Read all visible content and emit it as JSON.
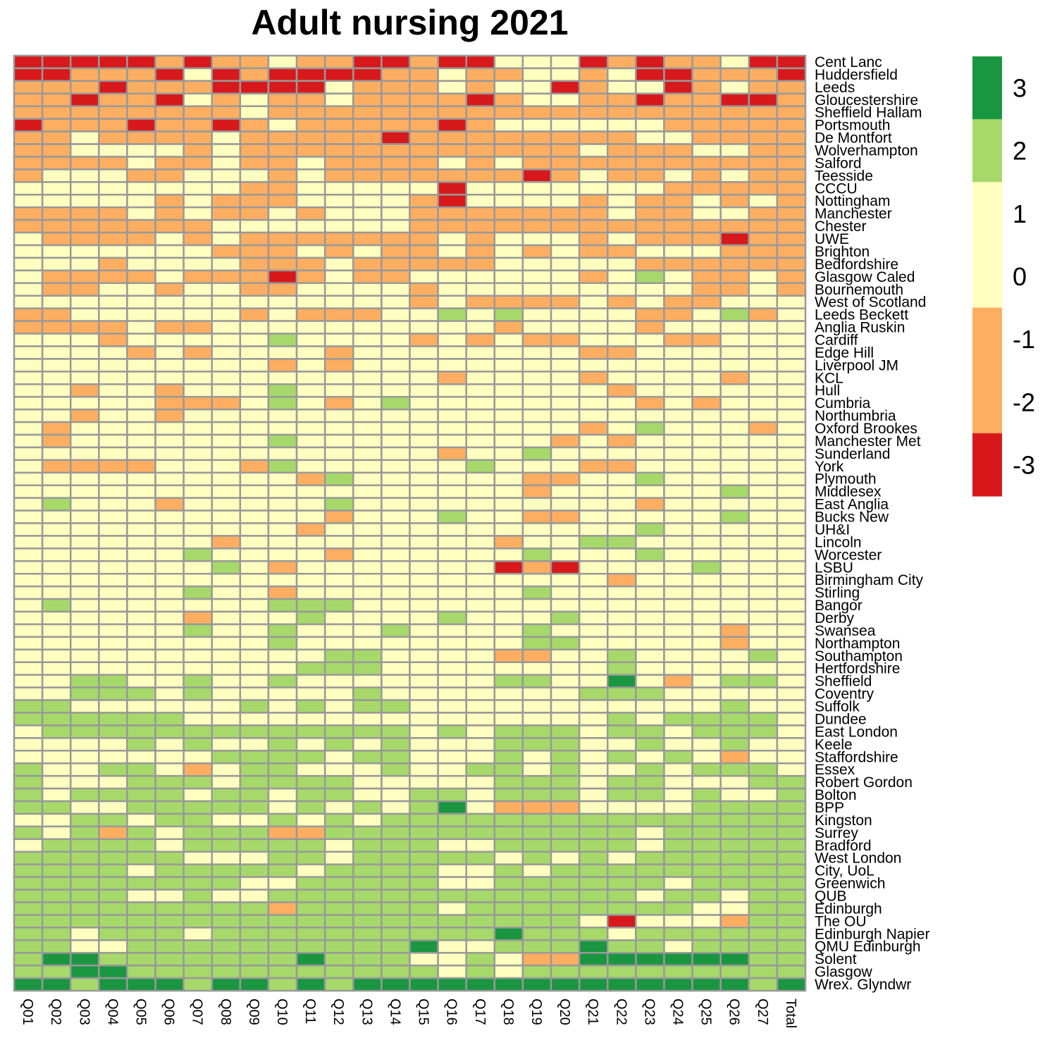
{
  "chart_data": {
    "type": "heatmap",
    "title": "Adult nursing 2021",
    "columns": [
      "Q01",
      "Q02",
      "Q03",
      "Q04",
      "Q05",
      "Q06",
      "Q07",
      "Q08",
      "Q09",
      "Q10",
      "Q11",
      "Q12",
      "Q13",
      "Q14",
      "Q15",
      "Q16",
      "Q17",
      "Q18",
      "Q19",
      "Q20",
      "Q21",
      "Q22",
      "Q23",
      "Q24",
      "Q25",
      "Q26",
      "Q27",
      "Total"
    ],
    "rows": [
      "Cent Lanc",
      "Huddersfield",
      "Leeds",
      "Gloucestershire",
      "Sheffield Hallam",
      "Portsmouth",
      "De Montfort",
      "Wolverhampton",
      "Salford",
      "Teesside",
      "CCCU",
      "Nottingham",
      "Manchester",
      "Chester",
      "UWE",
      "Brighton",
      "Bedfordshire",
      "Glasgow Caled",
      "Bournemouth",
      "West of Scotland",
      "Leeds Beckett",
      "Anglia Ruskin",
      "Cardiff",
      "Edge Hill",
      "Liverpool JM",
      "KCL",
      "Hull",
      "Cumbria",
      "Northumbria",
      "Oxford Brookes",
      "Manchester Met",
      "Sunderland",
      "York",
      "Plymouth",
      "Middlesex",
      "East Anglia",
      "Bucks New",
      "UH&I",
      "Lincoln",
      "Worcester",
      "LSBU",
      "Birmingham City",
      "Stirling",
      "Bangor",
      "Derby",
      "Swansea",
      "Northampton",
      "Southampton",
      "Hertfordshire",
      "Sheffield",
      "Coventry",
      "Suffolk",
      "Dundee",
      "East London",
      "Keele",
      "Staffordshire",
      "Essex",
      "Robert Gordon",
      "Bolton",
      "BPP",
      "Kingston",
      "Surrey",
      "Bradford",
      "West London",
      "City, UoL",
      "Greenwich",
      "QUB",
      "Edinburgh",
      "The OU",
      "Edinburgh Napier",
      "QMU Edinburgh",
      "Solent",
      "Glasgow",
      "Wrex. Glyndwr"
    ],
    "values": [
      "-3 -3 -3 -3 -3 -2 -3 -2 -2 0 -2 -2 -3 -3 -2 -3 -3 0 0 0 -3 -2 -3 -2 -2 0 -3 -3",
      "-3 -3 -2 -2 -2 -3 0 -3 -2 -3 -3 -3 -3 -2 -2 0 -2 -2 0 0 -2 0 -3 -3 -2 -2 -2 -3",
      "-2 -2 -2 -3 -2 -2 -2 -3 -3 -3 -3 0 -2 -2 -2 0 -2 0 0 -3 -2 0 0 -3 -2 0 -2 -2",
      "-2 -2 -3 -2 -2 -3 0 -2 0 -2 -2 0 -2 -2 -2 -2 -3 -2 0 0 -2 -2 -3 -2 -2 -3 -3 -2",
      "-2 -2 -2 -2 -2 -2 -2 -2 0 -2 -2 -2 -2 -2 -2 -2 -2 -2 -2 -2 -2 -2 -2 -2 -2 -2 -2 -2",
      "-3 -2 -2 -2 -3 -2 -2 -3 -2 0 -2 -2 -2 -2 -2 -3 -2 0 0 0 0 0 0 -2 -2 -2 -2 -2",
      "-2 -2 0 -2 -2 -2 -2 0 -2 -2 -2 -2 -2 -3 -2 -2 -2 -2 -2 -2 -2 -2 0 0 -2 -2 -2 -2",
      "-2 -2 0 0 0 0 -2 0 -2 -2 -2 -2 -2 -2 -2 -2 -2 -2 -2 -2 0 -2 -2 -2 0 0 -2 -2",
      "-2 -2 -2 -2 0 -2 -2 0 -2 -2 0 -2 -2 -2 -2 0 -2 0 -2 -2 -2 -2 -2 -2 -2 -2 -2 -2",
      "-2 0 0 0 -2 -2 0 0 0 -2 0 -2 -2 -2 -2 -2 -2 -2 -3 -2 0 -2 -2 0 -2 0 -2 -2",
      "0 0 0 0 0 0 0 0 -2 -2 0 0 0 0 0 -3 0 0 0 0 0 0 0 -2 -2 -2 -2 -2",
      "0 0 0 0 0 -2 0 -2 -2 -2 0 0 0 0 -2 -3 0 0 0 0 -2 0 -2 -2 0 -2 0 -2",
      "-2 -2 -2 -2 0 -2 0 -2 -2 0 -2 0 0 0 -2 -2 -2 -2 -2 -2 -2 0 -2 -2 0 0 -2 -2",
      "-2 -2 -2 -2 -2 -2 -2 0 0 0 0 0 0 0 -2 -2 -2 -2 -2 -2 -2 -2 -2 -2 -2 -2 -2 -2",
      "0 -2 -2 -2 -2 0 -2 0 -2 -2 -2 -2 -2 -2 -2 0 -2 0 0 0 -2 0 -2 -2 -2 -3 -2 -2",
      "0 0 0 0 0 0 0 -2 -2 -2 0 -2 0 -2 -2 0 -2 0 -2 0 -2 -2 0 0 0 -2 -2 -2",
      "0 0 0 -2 0 0 0 0 -2 -2 -2 0 -2 -2 -2 -2 -2 0 0 0 0 0 -2 -2 -2 -2 -2 -2",
      "0 -2 -2 -2 -2 0 -2 -2 -2 -3 -2 0 -2 -2 0 0 0 0 0 0 -2 0 2 0 -2 -2 0 -2",
      "0 -2 -2 0 0 -2 0 0 -2 -2 0 0 0 0 -2 0 0 0 0 0 0 0 0 0 -2 -2 0 -2",
      "0 0 0 0 0 0 0 0 0 0 0 0 0 0 -2 0 -2 -2 -2 -2 0 -2 0 -2 -2 0 0 0",
      "-2 -2 0 0 0 0 0 0 -2 0 -2 -2 -2 0 0 2 0 2 0 0 0 0 -2 -2 0 2 -2 0",
      "-2 -2 -2 -2 0 -2 -2 0 0 0 0 0 0 0 0 0 0 -2 0 0 0 0 -2 0 0 0 0 0",
      "0 0 0 -2 0 0 0 0 0 2 0 0 0 0 -2 0 -2 0 -2 -2 0 0 0 -2 -2 0 0 0",
      "0 0 0 0 -2 0 -2 0 0 0 0 -2 0 0 0 0 0 0 0 0 -2 -2 0 0 0 0 0 0",
      "0 0 0 0 0 0 0 0 0 -2 0 -2 0 0 0 0 0 0 0 0 0 0 0 0 0 0 0 0",
      "0 0 0 0 0 0 0 0 0 0 0 0 0 0 0 -2 0 0 0 0 -2 0 0 0 0 -2 0 0",
      "0 0 -2 0 0 -2 0 0 0 2 0 0 0 0 0 0 0 0 0 0 0 -2 0 0 0 0 0 0",
      "0 0 0 0 0 -2 -2 -2 0 2 0 -2 0 2 0 0 0 0 0 0 0 0 -2 0 -2 0 0 0",
      "0 0 -2 0 0 -2 0 0 0 0 0 0 0 0 0 0 0 0 0 0 0 0 0 0 0 0 0 0",
      "0 -2 0 0 0 0 0 0 0 0 0 0 0 0 0 0 0 0 0 0 -2 0 2 0 0 0 -2 0",
      "0 -2 0 0 0 0 0 0 0 2 0 0 0 0 0 0 0 0 0 -2 0 -2 0 0 0 0 0 0",
      "0 0 0 0 0 0 0 0 0 0 0 0 0 0 0 -2 0 0 2 0 0 0 0 0 0 0 0 0",
      "0 -2 -2 -2 -2 0 0 0 -2 2 0 0 0 0 0 0 2 0 0 0 -2 -2 0 0 0 0 0 0",
      "0 0 0 0 0 0 0 0 0 0 -2 2 0 0 0 0 0 0 -2 -2 0 0 2 0 0 0 0 0",
      "0 0 0 0 0 0 0 0 0 0 0 0 0 0 0 0 0 0 -2 0 0 0 0 0 0 2 0 0",
      "0 2 0 0 0 -2 0 0 0 0 0 2 0 0 0 0 0 0 0 0 0 0 -2 0 0 0 0 0",
      "0 0 0 0 0 0 0 0 0 0 0 -2 0 0 0 2 0 0 -2 -2 0 0 0 0 0 2 0 0",
      "0 0 0 0 0 0 0 0 0 0 -2 0 0 0 0 0 0 0 0 0 0 0 2 0 0 0 0 0",
      "0 0 0 0 0 0 0 -2 0 0 0 0 0 0 0 0 0 -2 0 0 2 2 0 0 0 0 0 0",
      "0 0 0 0 0 0 2 0 0 0 0 -2 0 0 0 0 0 0 2 0 0 0 2 0 0 0 0 0",
      "0 0 0 0 0 0 0 2 0 -2 0 0 0 0 0 0 0 -3 -2 -3 0 0 0 0 2 0 0 0",
      "0 0 0 0 0 0 0 0 0 0 0 0 0 0 0 0 0 0 0 0 0 -2 0 0 0 0 0 0",
      "0 0 0 0 0 0 2 0 0 -2 0 0 0 0 0 0 0 0 2 0 0 0 0 0 0 0 0 0",
      "0 2 0 0 0 0 0 0 0 2 2 2 0 0 0 0 0 0 0 0 0 0 0 0 0 0 0 0",
      "0 0 0 0 0 0 -2 0 0 0 2 0 0 0 0 2 0 0 0 2 0 0 0 0 0 0 0 0",
      "0 0 0 0 0 0 2 0 0 2 0 0 0 2 0 0 0 0 2 0 0 0 0 0 0 -2 0 0",
      "0 0 0 0 0 0 0 0 0 2 0 0 0 0 0 0 0 0 2 2 0 0 0 0 0 -2 0 0",
      "0 0 0 0 0 0 0 0 0 0 0 2 2 0 0 0 0 -2 -2 0 0 2 0 0 0 0 2 0",
      "0 0 0 0 0 0 0 0 0 0 2 2 2 0 0 0 0 0 0 0 0 2 0 0 0 0 0 0",
      "0 0 2 2 0 0 2 0 0 2 0 0 0 0 0 0 0 2 2 0 0 3 0 -2 0 2 2 0",
      "0 0 2 2 2 0 2 0 0 0 0 0 2 0 0 0 0 0 0 0 2 2 2 0 0 0 0 0",
      "2 2 0 0 0 0 0 0 2 0 2 0 2 2 0 0 0 0 0 0 0 0 0 0 0 2 0 0",
      "2 2 2 2 2 2 0 0 0 0 0 0 0 0 0 0 0 0 0 0 0 2 0 2 2 2 2 0",
      "0 2 2 2 2 2 2 2 2 2 2 2 2 2 0 2 0 2 2 2 0 2 2 0 2 2 2 0",
      "0 0 0 0 2 0 2 0 0 2 0 2 0 2 0 0 0 2 2 2 0 0 2 0 0 2 0 0",
      "0 0 0 0 0 0 0 2 2 2 2 0 2 2 0 0 0 2 0 2 0 2 0 2 0 -2 0 0",
      "2 0 0 2 2 0 -2 0 2 2 0 0 0 2 0 0 2 2 0 2 0 0 2 0 2 2 2 0",
      "2 0 0 0 2 2 2 0 2 2 2 2 0 0 0 0 0 2 2 2 0 2 2 0 0 0 2 2",
      "2 0 2 2 2 2 0 2 2 0 2 2 0 0 2 2 0 2 2 2 0 2 2 0 2 0 0 2",
      "2 2 0 0 2 2 2 2 2 0 2 0 2 0 2 3 0 -2 -2 -2 0 0 0 0 2 2 2 2",
      "0 0 2 2 0 2 2 0 0 2 0 2 0 2 2 2 2 2 2 2 2 2 2 2 2 2 2 2",
      "2 0 2 -2 2 0 2 2 2 -2 -2 2 2 2 2 2 2 2 2 2 2 2 0 2 2 2 2 2",
      "0 2 2 2 2 0 2 2 2 2 2 0 2 2 2 0 0 2 2 2 2 2 0 2 2 2 2 2",
      "2 2 2 2 2 2 0 0 0 2 2 0 2 2 2 2 2 0 2 0 2 0 2 2 2 2 2 2",
      "2 2 2 2 0 2 2 2 2 2 0 2 2 2 2 0 0 2 0 2 2 2 2 2 2 2 2 2",
      "2 2 2 2 2 2 2 2 0 0 2 2 2 2 2 0 0 2 2 2 2 2 2 0 2 2 2 2",
      "2 2 2 2 0 0 2 0 0 2 2 2 2 2 2 2 2 2 2 2 2 2 0 2 2 0 2 2",
      "2 2 2 2 2 2 2 2 2 -2 2 2 2 2 2 0 2 2 2 2 2 2 2 2 0 0 2 2",
      "2 2 2 2 2 2 2 2 2 2 2 2 2 2 2 2 2 2 2 2 0 -3 0 0 0 -2 2 2",
      "2 2 0 2 2 2 0 2 2 2 2 2 2 2 2 2 2 3 2 2 2 0 2 2 2 2 2 2",
      "2 2 0 0 2 2 2 2 2 2 2 2 2 2 3 0 0 2 2 2 3 2 2 0 2 2 2 2",
      "2 3 3 2 2 2 2 2 2 2 3 2 2 2 0 0 2 0 -2 -2 3 3 3 3 3 3 2 2",
      "2 2 3 3 2 2 2 2 2 2 2 2 2 2 2 0 2 0 2 2 2 2 2 2 2 2 2 2",
      "3 3 2 3 3 3 2 3 3 2 3 2 3 3 3 3 3 3 3 3 3 3 3 3 3 3 2 3"
    ],
    "value_scale": {
      "-3": "[-3.5,-2.5)",
      "-2": "[-2.5,-1.5)",
      "0": "[-1.5,1.5]",
      "2": "(1.5,2.5]",
      "3": "(2.5,3.5]"
    },
    "legend": {
      "ticks": [
        "3",
        "2",
        "1",
        "0",
        "-1",
        "-2",
        "-3"
      ],
      "placement": "right",
      "range": [
        -3.5,
        3.5
      ],
      "bands": [
        {
          "from": 2.5,
          "to": 3.5,
          "color": "#1a9641"
        },
        {
          "from": 1.5,
          "to": 2.5,
          "color": "#a6d96a"
        },
        {
          "from": 0.5,
          "to": 1.5,
          "color": "#ffffbf"
        },
        {
          "from": -0.5,
          "to": 0.5,
          "color": "#ffffbf"
        },
        {
          "from": -1.5,
          "to": -0.5,
          "color": "#fdae61"
        },
        {
          "from": -2.5,
          "to": -1.5,
          "color": "#fdae61"
        },
        {
          "from": -3.5,
          "to": -2.5,
          "color": "#d7191c"
        }
      ]
    },
    "colors": {
      "-3": "#d7191c",
      "-2": "#fdae61",
      "0": "#ffffbf",
      "2": "#a6d96a",
      "3": "#1a9641",
      "cell_border": "#999999"
    }
  }
}
